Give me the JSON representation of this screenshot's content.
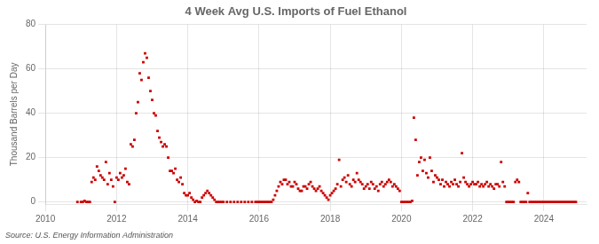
{
  "chart_data": {
    "type": "scatter",
    "title": "4 Week Avg U.S. Imports of Fuel Ethanol",
    "ylabel": "Thousand Barrels per Day",
    "annotations": [
      "Source: U.S. Energy Information Administration"
    ],
    "color": "#CC0000",
    "marker": "square",
    "grid": true,
    "xlim": [
      2010.0,
      2025.2
    ],
    "ylim": [
      -1,
      80
    ],
    "xticks": [
      2010,
      2012,
      2014,
      2016,
      2018,
      2020,
      2022,
      2024
    ],
    "yticks": [
      0,
      20,
      40,
      60,
      80
    ],
    "x": [
      2010.9,
      2011.0,
      2011.05,
      2011.1,
      2011.15,
      2011.2,
      2011.25,
      2011.3,
      2011.35,
      2011.4,
      2011.45,
      2011.5,
      2011.55,
      2011.6,
      2011.65,
      2011.7,
      2011.75,
      2011.8,
      2011.85,
      2011.9,
      2011.95,
      2012.0,
      2012.05,
      2012.1,
      2012.15,
      2012.2,
      2012.25,
      2012.3,
      2012.35,
      2012.4,
      2012.45,
      2012.5,
      2012.55,
      2012.6,
      2012.65,
      2012.7,
      2012.75,
      2012.8,
      2012.85,
      2012.9,
      2012.95,
      2013.0,
      2013.05,
      2013.1,
      2013.15,
      2013.2,
      2013.25,
      2013.3,
      2013.35,
      2013.4,
      2013.45,
      2013.5,
      2013.55,
      2013.6,
      2013.65,
      2013.7,
      2013.75,
      2013.8,
      2013.85,
      2013.9,
      2013.95,
      2014.0,
      2014.05,
      2014.1,
      2014.15,
      2014.2,
      2014.25,
      2014.3,
      2014.35,
      2014.4,
      2014.45,
      2014.5,
      2014.55,
      2014.6,
      2014.65,
      2014.7,
      2014.75,
      2014.8,
      2014.85,
      2014.9,
      2014.95,
      2015.0,
      2015.1,
      2015.2,
      2015.3,
      2015.4,
      2015.5,
      2015.6,
      2015.7,
      2015.8,
      2015.9,
      2015.95,
      2016.0,
      2016.05,
      2016.1,
      2016.15,
      2016.2,
      2016.25,
      2016.3,
      2016.35,
      2016.4,
      2016.45,
      2016.5,
      2016.55,
      2016.6,
      2016.65,
      2016.7,
      2016.75,
      2016.8,
      2016.85,
      2016.9,
      2016.95,
      2017.0,
      2017.05,
      2017.1,
      2017.15,
      2017.2,
      2017.25,
      2017.3,
      2017.35,
      2017.4,
      2017.45,
      2017.5,
      2017.55,
      2017.6,
      2017.65,
      2017.7,
      2017.75,
      2017.8,
      2017.85,
      2017.9,
      2017.95,
      2018.0,
      2018.05,
      2018.1,
      2018.15,
      2018.2,
      2018.25,
      2018.3,
      2018.35,
      2018.4,
      2018.45,
      2018.5,
      2018.55,
      2018.6,
      2018.65,
      2018.7,
      2018.75,
      2018.8,
      2018.85,
      2018.9,
      2018.95,
      2019.0,
      2019.05,
      2019.1,
      2019.15,
      2019.2,
      2019.25,
      2019.3,
      2019.35,
      2019.4,
      2019.45,
      2019.5,
      2019.55,
      2019.6,
      2019.65,
      2019.7,
      2019.75,
      2019.8,
      2019.85,
      2019.9,
      2019.95,
      2020.0,
      2020.05,
      2020.1,
      2020.15,
      2020.2,
      2020.25,
      2020.3,
      2020.35,
      2020.4,
      2020.45,
      2020.5,
      2020.55,
      2020.6,
      2020.65,
      2020.7,
      2020.75,
      2020.8,
      2020.85,
      2020.9,
      2020.95,
      2021.0,
      2021.05,
      2021.1,
      2021.15,
      2021.2,
      2021.25,
      2021.3,
      2021.35,
      2021.4,
      2021.45,
      2021.5,
      2021.55,
      2021.6,
      2021.65,
      2021.7,
      2021.75,
      2021.8,
      2021.85,
      2021.9,
      2021.95,
      2022.0,
      2022.05,
      2022.1,
      2022.15,
      2022.2,
      2022.25,
      2022.3,
      2022.35,
      2022.4,
      2022.45,
      2022.5,
      2022.55,
      2022.6,
      2022.65,
      2022.7,
      2022.75,
      2022.8,
      2022.85,
      2022.9,
      2022.95,
      2023.0,
      2023.05,
      2023.1,
      2023.15,
      2023.2,
      2023.25,
      2023.3,
      2023.35,
      2023.4,
      2023.45,
      2023.5,
      2023.55,
      2023.6,
      2023.65,
      2023.7,
      2023.75,
      2023.8,
      2023.85,
      2023.9,
      2023.95,
      2024.0,
      2024.05,
      2024.1,
      2024.15,
      2024.2,
      2024.25,
      2024.3,
      2024.35,
      2024.4,
      2024.45,
      2024.5,
      2024.55,
      2024.6,
      2024.65,
      2024.7,
      2024.75,
      2024.8,
      2024.85,
      2024.9
    ],
    "values": [
      0,
      0,
      0,
      0.5,
      0,
      0,
      0,
      9,
      11,
      10,
      16,
      14,
      12,
      11,
      10,
      18,
      8,
      13,
      10,
      7,
      0,
      11,
      10,
      13,
      11,
      12,
      15,
      9,
      8,
      26,
      25,
      28,
      40,
      45,
      58,
      55,
      63,
      67,
      65,
      56,
      50,
      46,
      40,
      39,
      32,
      29,
      27,
      25,
      26,
      25,
      20,
      14,
      14,
      13,
      15,
      10,
      9,
      11,
      8,
      4,
      3,
      3,
      4,
      2,
      1,
      0,
      0.5,
      0,
      0,
      2,
      3,
      4,
      5,
      4,
      3,
      2,
      1,
      0,
      0,
      0,
      0,
      0,
      0,
      0,
      0,
      0,
      0,
      0,
      0,
      0,
      0,
      0,
      0,
      0,
      0,
      0,
      0,
      0,
      0,
      0,
      1,
      3,
      5,
      7,
      9,
      8,
      10,
      10,
      8,
      9,
      7,
      7,
      9,
      8,
      6,
      5,
      5,
      7,
      7,
      6,
      8,
      9,
      7,
      6,
      5,
      6,
      7,
      5,
      4,
      3,
      2,
      1,
      3,
      4,
      5,
      6,
      8,
      19,
      7,
      10,
      11,
      9,
      12,
      8,
      7,
      10,
      9,
      13,
      10,
      9,
      8,
      6,
      7,
      8,
      6,
      9,
      8,
      6,
      7,
      5,
      8,
      9,
      7,
      8,
      9,
      10,
      9,
      7,
      8,
      7,
      6,
      5,
      0,
      0,
      0,
      0,
      0,
      0,
      0.5,
      38,
      28,
      12,
      18,
      20,
      14,
      19,
      13,
      11,
      20,
      14,
      9,
      12,
      11,
      10,
      8,
      10,
      7,
      9,
      8,
      7,
      9,
      8,
      10,
      8,
      7,
      9,
      22,
      11,
      9,
      8,
      7,
      8,
      9,
      8,
      8,
      9,
      7,
      8,
      7,
      8,
      9,
      7,
      8,
      7,
      6,
      8,
      8,
      7,
      18,
      9,
      7,
      0,
      0,
      0,
      0,
      0,
      9,
      10,
      9,
      0,
      0,
      0,
      0,
      4,
      0,
      0,
      0,
      0,
      0,
      0,
      0,
      0,
      0,
      0,
      0,
      0,
      0,
      0,
      0,
      0,
      0,
      0,
      0,
      0,
      0,
      0,
      0,
      0,
      0,
      0,
      0
    ]
  }
}
